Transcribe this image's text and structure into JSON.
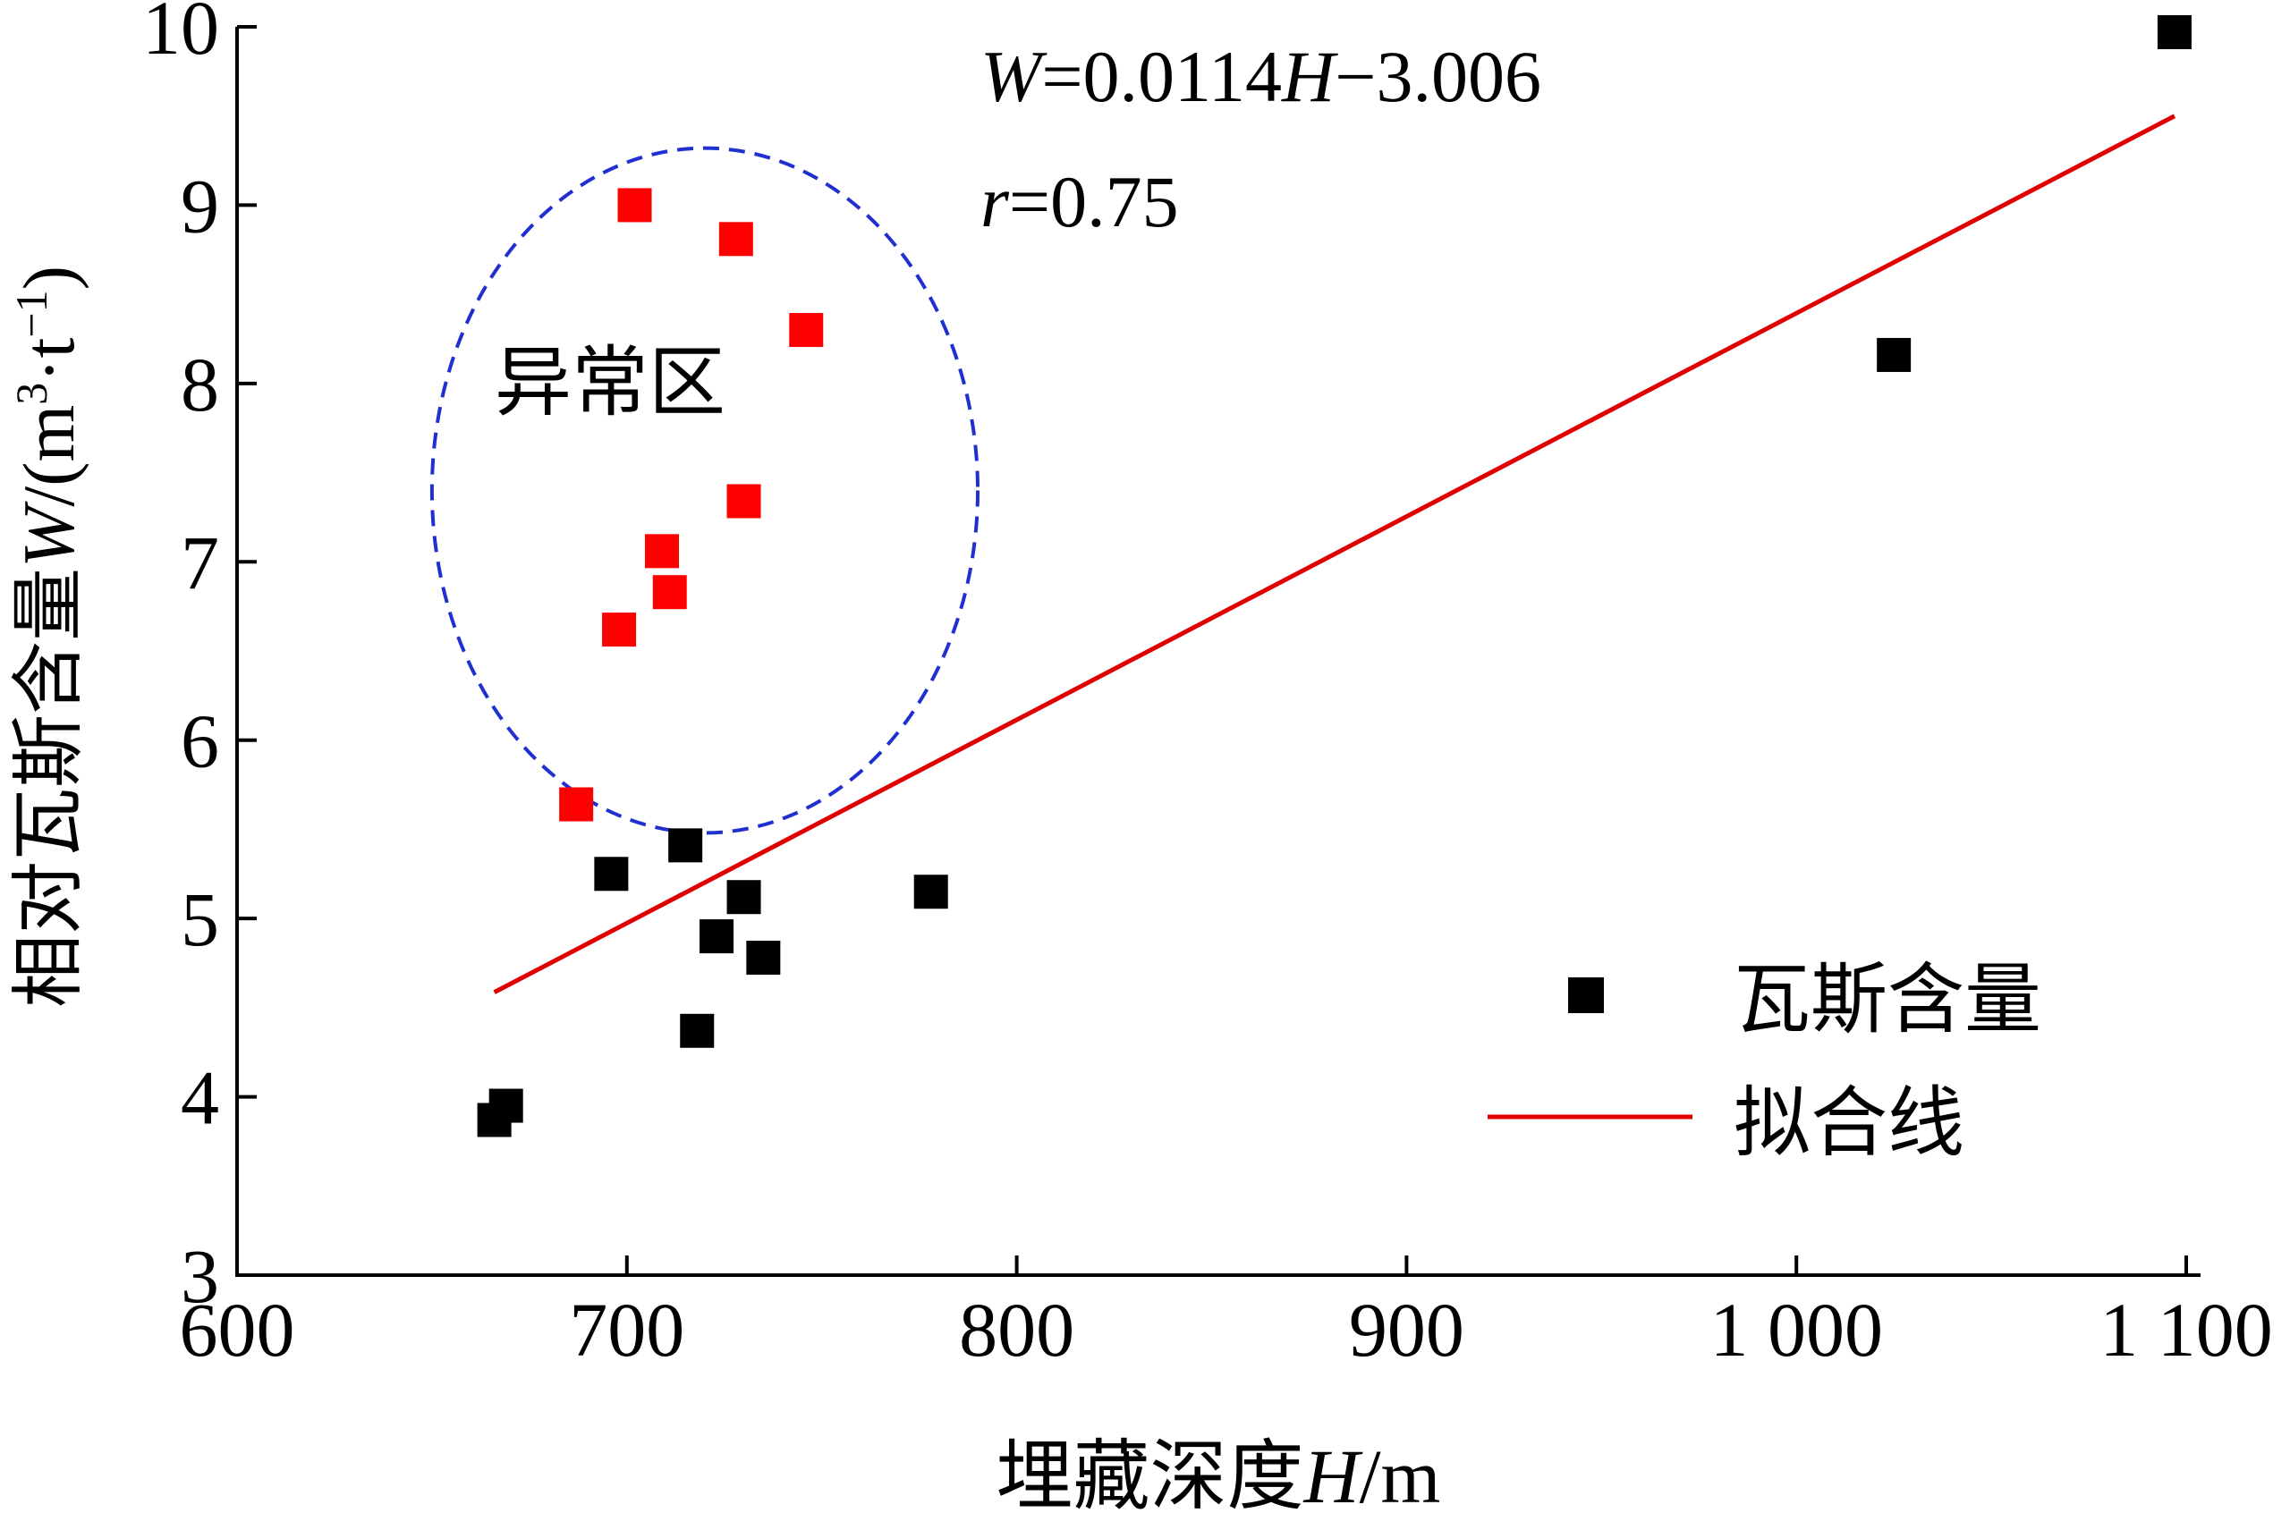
{
  "chart_data": {
    "type": "scatter",
    "xlabel": {
      "prefix": "埋藏深度",
      "var": "H",
      "suffix": "/m"
    },
    "ylabel": {
      "prefix": "相对瓦斯含量",
      "var": "W",
      "unit_open": "/(m",
      "sup1": "3",
      "dot": "·t",
      "sup2": "−1",
      "unit_close": ")"
    },
    "xlim": [
      600,
      1100
    ],
    "ylim": [
      3,
      10
    ],
    "x_ticks": [
      {
        "value": 600,
        "label": "600"
      },
      {
        "value": 700,
        "label": "700"
      },
      {
        "value": 800,
        "label": "800"
      },
      {
        "value": 900,
        "label": "900"
      },
      {
        "value": 1000,
        "label": "1 000"
      },
      {
        "value": 1100,
        "label": "1 100"
      }
    ],
    "y_ticks": [
      {
        "value": 3,
        "label": "3"
      },
      {
        "value": 4,
        "label": "4"
      },
      {
        "value": 5,
        "label": "5"
      },
      {
        "value": 6,
        "label": "6"
      },
      {
        "value": 7,
        "label": "7"
      },
      {
        "value": 8,
        "label": "8"
      },
      {
        "value": 9,
        "label": "9"
      },
      {
        "value": 10,
        "label": "10"
      }
    ],
    "series": [
      {
        "name": "瓦斯含量",
        "color": "#000000",
        "points": [
          {
            "x": 666,
            "y": 3.87
          },
          {
            "x": 669,
            "y": 3.95
          },
          {
            "x": 696,
            "y": 5.25
          },
          {
            "x": 715,
            "y": 5.41
          },
          {
            "x": 718,
            "y": 4.37
          },
          {
            "x": 723,
            "y": 4.9
          },
          {
            "x": 730,
            "y": 5.12
          },
          {
            "x": 735,
            "y": 4.78
          },
          {
            "x": 778,
            "y": 5.15
          },
          {
            "x": 1025,
            "y": 8.16
          },
          {
            "x": 1097,
            "y": 9.97
          }
        ]
      },
      {
        "name": "",
        "color": "#ff0000",
        "points": [
          {
            "x": 687,
            "y": 5.64
          },
          {
            "x": 698,
            "y": 6.62
          },
          {
            "x": 709,
            "y": 7.06
          },
          {
            "x": 711,
            "y": 6.83
          },
          {
            "x": 702,
            "y": 9.0
          },
          {
            "x": 728,
            "y": 8.81
          },
          {
            "x": 730,
            "y": 7.34
          },
          {
            "x": 746,
            "y": 8.3
          }
        ]
      }
    ],
    "fit_line": {
      "name": "拟合线",
      "color": "#e00000",
      "slope": 0.0114,
      "intercept": -3.006,
      "x_range": [
        666,
        1097
      ]
    },
    "anomaly_region": {
      "label": "异常区",
      "color": "#1f2fd0",
      "center": [
        720,
        7.4
      ],
      "radius_x": 70,
      "radius_y": 1.92
    },
    "equation": {
      "var1": "W",
      "mid1": "=0.0114",
      "var2": "H",
      "mid2": "−3.006"
    },
    "correlation": {
      "var": "r",
      "value_text": "=0.75"
    },
    "legend": {
      "position": "bottom-right",
      "marker_label": "瓦斯含量",
      "line_label": "拟合线"
    }
  }
}
